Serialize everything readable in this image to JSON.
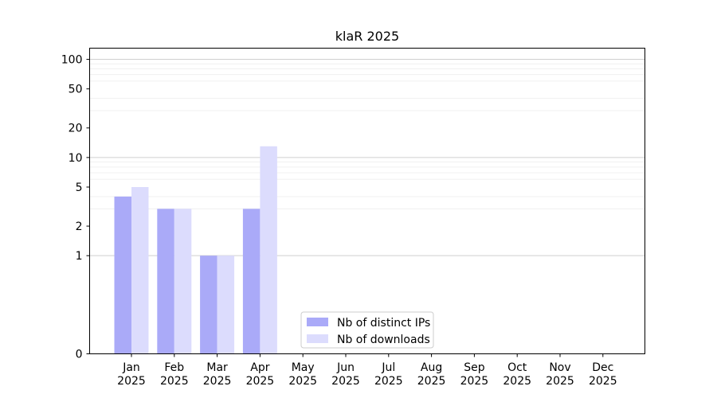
{
  "chart_data": {
    "type": "bar",
    "title": "klaR 2025",
    "xlabel": "",
    "ylabel": "",
    "scale": "symlog",
    "ylim": [
      0,
      130
    ],
    "y_ticks": [
      0,
      1,
      2,
      5,
      10,
      20,
      50,
      100
    ],
    "categories": [
      {
        "month": "Jan",
        "year": "2025"
      },
      {
        "month": "Feb",
        "year": "2025"
      },
      {
        "month": "Mar",
        "year": "2025"
      },
      {
        "month": "Apr",
        "year": "2025"
      },
      {
        "month": "May",
        "year": "2025"
      },
      {
        "month": "Jun",
        "year": "2025"
      },
      {
        "month": "Jul",
        "year": "2025"
      },
      {
        "month": "Aug",
        "year": "2025"
      },
      {
        "month": "Sep",
        "year": "2025"
      },
      {
        "month": "Oct",
        "year": "2025"
      },
      {
        "month": "Nov",
        "year": "2025"
      },
      {
        "month": "Dec",
        "year": "2025"
      }
    ],
    "series": [
      {
        "name": "Nb of distinct IPs",
        "color": "#aaaaf8",
        "values": [
          4,
          3,
          1,
          3,
          0,
          0,
          0,
          0,
          0,
          0,
          0,
          0
        ]
      },
      {
        "name": "Nb of downloads",
        "color": "#dcdcfd",
        "values": [
          5,
          3,
          1,
          13,
          0,
          0,
          0,
          0,
          0,
          0,
          0,
          0
        ]
      }
    ],
    "grid": true,
    "legend_position": "bottom-center"
  }
}
